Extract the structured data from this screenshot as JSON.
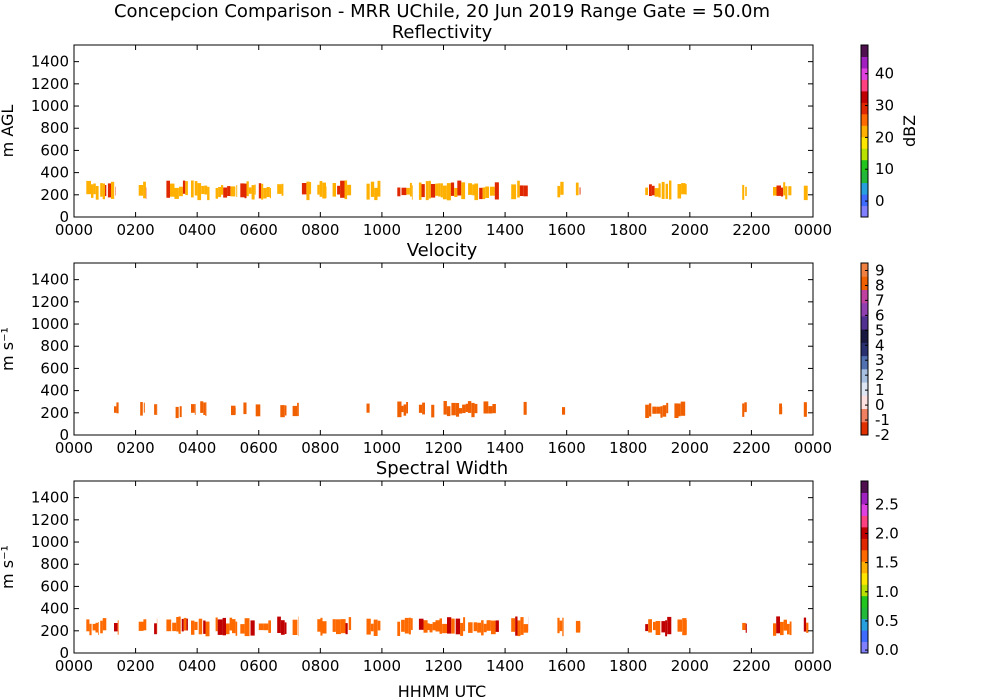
{
  "figure": {
    "title": "Concepcion Comparison - MRR UChile, 20 Jun 2019 Range Gate = 50.0m",
    "xlabel": "HHMM UTC"
  },
  "chart_data": [
    {
      "type": "heatmap",
      "title": "Reflectivity",
      "ylabel": "m AGL",
      "colorbar_label": "dBZ",
      "colorbar_range": [
        -5,
        49
      ],
      "colorbar_ticks": [
        "0",
        "10",
        "20",
        "30",
        "40"
      ],
      "colorbar_tick_values": [
        0,
        10,
        20,
        30,
        40
      ],
      "colormap": [
        "#8080ff",
        "#3e6aff",
        "#28a0e0",
        "#22b83a",
        "#22c41e",
        "#b8e000",
        "#ffe600",
        "#ffb000",
        "#ff6a00",
        "#e02800",
        "#c00000",
        "#ff4080",
        "#e040e0",
        "#a020c0",
        "#501050"
      ],
      "xlim": [
        0,
        2400
      ],
      "ylim": [
        0,
        1550
      ],
      "xticks": [
        "0000",
        "0200",
        "0400",
        "0600",
        "0800",
        "1000",
        "1200",
        "1400",
        "1600",
        "1800",
        "2000",
        "2200",
        "0000"
      ],
      "yticks": [
        "0",
        "200",
        "400",
        "600",
        "800",
        "1000",
        "1200",
        "1400"
      ],
      "segments": [
        [
          40,
          80
        ],
        [
          85,
          105
        ],
        [
          110,
          135
        ],
        [
          210,
          235
        ],
        [
          300,
          370
        ],
        [
          380,
          440
        ],
        [
          460,
          530
        ],
        [
          540,
          590
        ],
        [
          600,
          640
        ],
        [
          660,
          680
        ],
        [
          740,
          770
        ],
        [
          790,
          820
        ],
        [
          840,
          900
        ],
        [
          950,
          995
        ],
        [
          1050,
          1100
        ],
        [
          1120,
          1270
        ],
        [
          1280,
          1380
        ],
        [
          1420,
          1475
        ],
        [
          1570,
          1590
        ],
        [
          1630,
          1645
        ],
        [
          1855,
          1940
        ],
        [
          1960,
          1990
        ],
        [
          2170,
          2185
        ],
        [
          2270,
          2330
        ],
        [
          2370,
          2385
        ]
      ],
      "base_altitude": 150,
      "top_altitude": 330,
      "dominant_value": 22,
      "accent_value": 28
    },
    {
      "type": "heatmap",
      "title": "Velocity",
      "ylabel": "m s⁻¹",
      "colorbar_range": [
        -2,
        9.5
      ],
      "colorbar_ticks": [
        "-2",
        "-1",
        "0",
        "1",
        "2",
        "3",
        "4",
        "5",
        "6",
        "7",
        "8",
        "9"
      ],
      "colorbar_tick_values": [
        -2,
        -1,
        0,
        1,
        2,
        3,
        4,
        5,
        6,
        7,
        8,
        9
      ],
      "colormap": [
        "#e03000",
        "#f08060",
        "#ffe0e0",
        "#dde6f2",
        "#a8c0e0",
        "#5070b0",
        "#283070",
        "#181840",
        "#503090",
        "#9040b0",
        "#c040a0",
        "#f06000",
        "#f08040"
      ],
      "xlim": [
        0,
        2400
      ],
      "ylim": [
        0,
        1550
      ],
      "xticks": [
        "0000",
        "0200",
        "0400",
        "0600",
        "0800",
        "1000",
        "1200",
        "1400",
        "1600",
        "1800",
        "2000",
        "2200",
        "0000"
      ],
      "yticks": [
        "0",
        "200",
        "400",
        "600",
        "800",
        "1000",
        "1200",
        "1400"
      ],
      "segments": [
        [
          130,
          145
        ],
        [
          215,
          230
        ],
        [
          260,
          270
        ],
        [
          330,
          350
        ],
        [
          380,
          395
        ],
        [
          410,
          430
        ],
        [
          510,
          525
        ],
        [
          550,
          560
        ],
        [
          590,
          605
        ],
        [
          670,
          690
        ],
        [
          710,
          730
        ],
        [
          950,
          960
        ],
        [
          1050,
          1085
        ],
        [
          1120,
          1140
        ],
        [
          1160,
          1170
        ],
        [
          1200,
          1310
        ],
        [
          1330,
          1370
        ],
        [
          1460,
          1470
        ],
        [
          1585,
          1595
        ],
        [
          1855,
          1930
        ],
        [
          1950,
          1985
        ],
        [
          2170,
          2185
        ],
        [
          2290,
          2300
        ],
        [
          2370,
          2380
        ]
      ],
      "base_altitude": 150,
      "top_altitude": 310,
      "dominant_value": 8.5,
      "accent_value": 7.8
    },
    {
      "type": "heatmap",
      "title": "Spectral Width",
      "ylabel": "m s⁻¹",
      "colorbar_range": [
        -0.05,
        2.9
      ],
      "colorbar_ticks": [
        "0.0",
        "0.5",
        "1.0",
        "1.5",
        "2.0",
        "2.5"
      ],
      "colorbar_tick_values": [
        0,
        0.5,
        1,
        1.5,
        2,
        2.5
      ],
      "colormap": [
        "#8080ff",
        "#3e6aff",
        "#28a0e0",
        "#22b83a",
        "#22c41e",
        "#b8e000",
        "#ffe600",
        "#ffb000",
        "#ff6a00",
        "#e02800",
        "#c00000",
        "#ff4080",
        "#e040e0",
        "#a020c0",
        "#501050"
      ],
      "xlim": [
        0,
        2400
      ],
      "ylim": [
        0,
        1550
      ],
      "xticks": [
        "0000",
        "0200",
        "0400",
        "0600",
        "0800",
        "1000",
        "1200",
        "1400",
        "1600",
        "1800",
        "2000",
        "2200",
        "0000"
      ],
      "yticks": [
        "0",
        "200",
        "400",
        "600",
        "800",
        "1000",
        "1200",
        "1400"
      ],
      "segments": [
        [
          40,
          80
        ],
        [
          85,
          105
        ],
        [
          130,
          145
        ],
        [
          210,
          235
        ],
        [
          260,
          270
        ],
        [
          300,
          370
        ],
        [
          380,
          440
        ],
        [
          460,
          530
        ],
        [
          540,
          590
        ],
        [
          600,
          640
        ],
        [
          660,
          690
        ],
        [
          710,
          730
        ],
        [
          790,
          820
        ],
        [
          840,
          900
        ],
        [
          950,
          995
        ],
        [
          1050,
          1100
        ],
        [
          1120,
          1270
        ],
        [
          1280,
          1380
        ],
        [
          1420,
          1475
        ],
        [
          1570,
          1590
        ],
        [
          1630,
          1645
        ],
        [
          1855,
          1940
        ],
        [
          1960,
          1990
        ],
        [
          2170,
          2185
        ],
        [
          2270,
          2330
        ],
        [
          2370,
          2385
        ]
      ],
      "base_altitude": 150,
      "top_altitude": 330,
      "dominant_value": 1.6,
      "accent_value": 2.1
    }
  ]
}
